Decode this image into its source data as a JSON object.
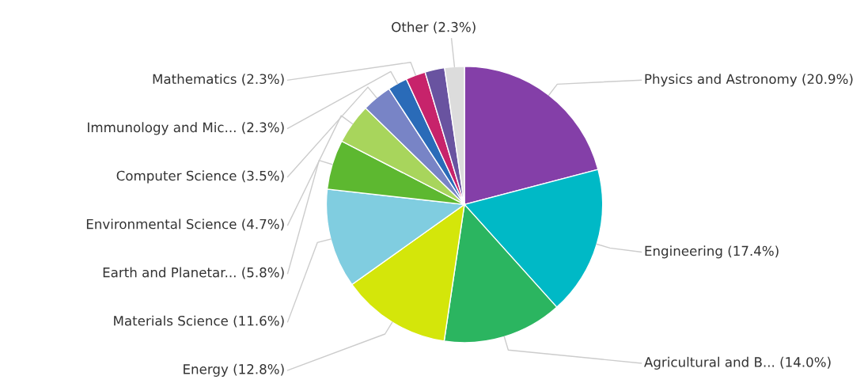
{
  "chart_data": {
    "type": "pie",
    "categories": [
      "Physics and Astronomy",
      "Engineering",
      "Agricultural and B...",
      "Energy",
      "Materials Science",
      "Earth and Planetar...",
      "Environmental Science",
      "Computer Science",
      "Immunology and Mic...",
      "Mathematics",
      null,
      "Other"
    ],
    "values": [
      20.9,
      17.4,
      14.0,
      12.8,
      11.6,
      5.8,
      4.7,
      3.5,
      2.3,
      2.3,
      2.3,
      2.3
    ],
    "value_labels": [
      "(20.9%)",
      "(17.4%)",
      "(14.0%)",
      "(12.8%)",
      "(11.6%)",
      "(5.8%)",
      "(4.7%)",
      "(3.5%)",
      "(2.3%)",
      "(2.3%)",
      null,
      "(2.3%)"
    ],
    "colors": [
      "#843fa8",
      "#00b9c6",
      "#2bb560",
      "#d4e60a",
      "#80cde0",
      "#5db830",
      "#a8d55c",
      "#7884c6",
      "#2a6bb8",
      "#c7236b",
      "#6953a0",
      "#dcdcdc"
    ],
    "legend": false
  }
}
